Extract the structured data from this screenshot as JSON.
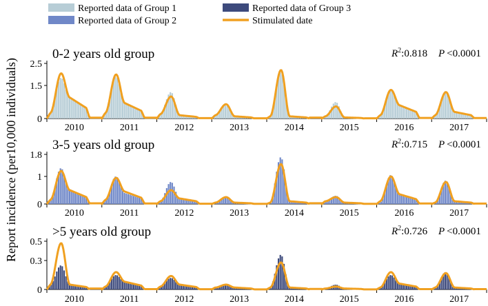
{
  "chart_data": {
    "type": "bar+line",
    "ylabel": "Report incidence (per10,000 individuals)",
    "legend": [
      {
        "label": "Reported data of Group 1",
        "kind": "bar",
        "color": "#b7cdd6"
      },
      {
        "label": "Reported data of Group 2",
        "kind": "bar",
        "color": "#7088c8"
      },
      {
        "label": "Reported data of Group 3",
        "kind": "bar",
        "color": "#3d4a7c"
      },
      {
        "label": "Stimulated date",
        "kind": "line",
        "color": "#f0a020"
      }
    ],
    "x_years": [
      "2010",
      "2011",
      "2012",
      "2013",
      "2014",
      "2015",
      "2016",
      "2017"
    ],
    "panels": [
      {
        "title": "0-2 years old group",
        "r2_label": "R",
        "r2_sup": "2",
        "r2_value": ":0.818",
        "p_label": "P",
        "p_value": "<0.0001",
        "ymax": 2.5,
        "yticks": [
          {
            "v": 0,
            "label": "0"
          },
          {
            "v": 1.5,
            "label": "1.5"
          },
          {
            "v": 2.5,
            "label": "2.5"
          }
        ],
        "bar_color": "#b7cdd6",
        "years": [
          {
            "obs": {
              "a": 0.25,
              "p": 1.85,
              "s": 0.95
            },
            "sim": {
              "a": 0.25,
              "p": 2.05,
              "s": 0.95
            }
          },
          {
            "obs": {
              "a": 0.25,
              "p": 1.9,
              "s": 0.7
            },
            "sim": {
              "a": 0.25,
              "p": 2.0,
              "s": 0.7
            }
          },
          {
            "obs": {
              "a": 0.2,
              "p": 1.2,
              "s": 0.2
            },
            "sim": {
              "a": 0.2,
              "p": 1.0,
              "s": 0.15
            }
          },
          {
            "obs": {
              "a": 0.15,
              "p": 0.6,
              "s": 0.1
            },
            "sim": {
              "a": 0.15,
              "p": 0.65,
              "s": 0.1
            }
          },
          {
            "obs": {
              "a": 0.1,
              "p": 2.1,
              "s": 0.1
            },
            "sim": {
              "a": 0.1,
              "p": 2.2,
              "s": 0.1
            }
          },
          {
            "obs": {
              "a": 0.1,
              "p": 0.75,
              "s": 0.05
            },
            "sim": {
              "a": 0.1,
              "p": 0.55,
              "s": 0.05
            }
          },
          {
            "obs": {
              "a": 0.15,
              "p": 1.3,
              "s": 0.6
            },
            "sim": {
              "a": 0.15,
              "p": 1.3,
              "s": 0.6
            }
          },
          {
            "obs": {
              "a": 0.1,
              "p": 1.25,
              "s": 0.3
            },
            "sim": {
              "a": 0.15,
              "p": 1.2,
              "s": 0.3
            }
          }
        ]
      },
      {
        "title": "3-5 years old group",
        "r2_label": "R",
        "r2_sup": "2",
        "r2_value": ":0.715",
        "p_label": "P",
        "p_value": "<0.0001",
        "ymax": 1.8,
        "yticks": [
          {
            "v": 0,
            "label": "0"
          },
          {
            "v": 1,
            "label": "1"
          },
          {
            "v": 1.8,
            "label": "1.8"
          }
        ],
        "bar_color": "#7088c8",
        "years": [
          {
            "obs": {
              "a": 0.15,
              "p": 1.3,
              "s": 0.5
            },
            "sim": {
              "a": 0.15,
              "p": 1.2,
              "s": 0.5
            }
          },
          {
            "obs": {
              "a": 0.15,
              "p": 1.0,
              "s": 0.4
            },
            "sim": {
              "a": 0.15,
              "p": 0.95,
              "s": 0.45
            }
          },
          {
            "obs": {
              "a": 0.1,
              "p": 0.8,
              "s": 0.2
            },
            "sim": {
              "a": 0.1,
              "p": 0.5,
              "s": 0.2
            }
          },
          {
            "obs": {
              "a": 0.05,
              "p": 0.25,
              "s": 0.05
            },
            "sim": {
              "a": 0.05,
              "p": 0.25,
              "s": 0.05
            }
          },
          {
            "obs": {
              "a": 0.05,
              "p": 1.7,
              "s": 0.1
            },
            "sim": {
              "a": 0.05,
              "p": 1.45,
              "s": 0.1
            }
          },
          {
            "obs": {
              "a": 0.1,
              "p": 0.3,
              "s": 0.05
            },
            "sim": {
              "a": 0.1,
              "p": 0.25,
              "s": 0.05
            }
          },
          {
            "obs": {
              "a": 0.05,
              "p": 1.05,
              "s": 0.35
            },
            "sim": {
              "a": 0.1,
              "p": 1.0,
              "s": 0.35
            }
          },
          {
            "obs": {
              "a": 0.05,
              "p": 0.85,
              "s": 0.1
            },
            "sim": {
              "a": 0.05,
              "p": 0.8,
              "s": 0.1
            }
          }
        ]
      },
      {
        "title": ">5 years old group",
        "r2_label": "R",
        "r2_sup": "2",
        "r2_value": ":0.726",
        "p_label": "P",
        "p_value": "<0.0001",
        "ymax": 0.5,
        "yticks": [
          {
            "v": 0,
            "label": "0"
          },
          {
            "v": 0.3,
            "label": "0.3"
          },
          {
            "v": 0.5,
            "label": "0.5"
          }
        ],
        "bar_color": "#3d4a7c",
        "years": [
          {
            "obs": {
              "a": 0.05,
              "p": 0.25,
              "s": 0.06
            },
            "sim": {
              "a": 0.05,
              "p": 0.48,
              "s": 0.05
            }
          },
          {
            "obs": {
              "a": 0.03,
              "p": 0.15,
              "s": 0.08
            },
            "sim": {
              "a": 0.03,
              "p": 0.18,
              "s": 0.08
            }
          },
          {
            "obs": {
              "a": 0.03,
              "p": 0.12,
              "s": 0.05
            },
            "sim": {
              "a": 0.03,
              "p": 0.14,
              "s": 0.05
            }
          },
          {
            "obs": {
              "a": 0.02,
              "p": 0.05,
              "s": 0.02
            },
            "sim": {
              "a": 0.02,
              "p": 0.05,
              "s": 0.02
            }
          },
          {
            "obs": {
              "a": 0.02,
              "p": 0.36,
              "s": 0.02
            },
            "sim": {
              "a": 0.02,
              "p": 0.28,
              "s": 0.02
            }
          },
          {
            "obs": {
              "a": 0.01,
              "p": 0.05,
              "s": 0.01
            },
            "sim": {
              "a": 0.01,
              "p": 0.03,
              "s": 0.01
            }
          },
          {
            "obs": {
              "a": 0.02,
              "p": 0.15,
              "s": 0.06
            },
            "sim": {
              "a": 0.02,
              "p": 0.18,
              "s": 0.06
            }
          },
          {
            "obs": {
              "a": 0.02,
              "p": 0.18,
              "s": 0.02
            },
            "sim": {
              "a": 0.02,
              "p": 0.17,
              "s": 0.02
            }
          }
        ]
      }
    ]
  }
}
